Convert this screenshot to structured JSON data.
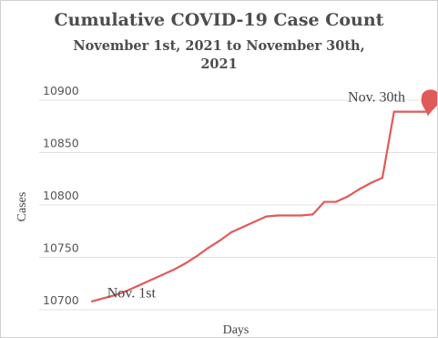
{
  "chart_data": {
    "type": "line",
    "title": "Cumulative COVID-19 Case Count",
    "subtitle_line1": "November 1st, 2021 to November 30th,",
    "subtitle_line2": "2021",
    "xlabel": "Days",
    "ylabel": "Cases",
    "x": [
      1,
      2,
      3,
      4,
      5,
      6,
      7,
      8,
      9,
      10,
      11,
      12,
      13,
      14,
      15,
      16,
      17,
      18,
      19,
      20,
      21,
      22,
      23,
      24,
      25,
      26,
      27,
      28,
      29,
      30
    ],
    "values": [
      10708,
      10711,
      10714,
      10718,
      10723,
      10728,
      10733,
      10738,
      10744,
      10751,
      10759,
      10766,
      10774,
      10779,
      10784,
      10789,
      10790,
      10790,
      10790,
      10791,
      10803,
      10803,
      10808,
      10815,
      10821,
      10826,
      10889,
      10889,
      10889,
      10889
    ],
    "yticks": [
      10700,
      10750,
      10800,
      10850,
      10900
    ],
    "ylim": [
      10700,
      10900
    ],
    "grid": true,
    "line_color": "#e05a5a",
    "gridline_color": "#e0e0e0",
    "annotations": [
      {
        "text": "Nov. 1st",
        "x": 2,
        "y": 10711
      },
      {
        "text": "Nov. 30th",
        "x": 30,
        "y": 10889
      }
    ]
  }
}
